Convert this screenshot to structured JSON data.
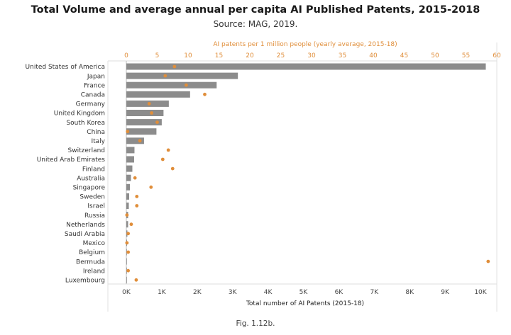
{
  "header": {
    "title": "Total Volume and average annual per capita AI Published Patents, 2015-2018",
    "subtitle": "Source: MAG, 2019."
  },
  "caption": "Fig. 1.12b.",
  "chart_data": {
    "type": "bar",
    "orientation": "horizontal",
    "categories": [
      "United States of America",
      "Japan",
      "France",
      "Canada",
      "Germany",
      "United Kingdom",
      "South Korea",
      "China",
      "Italy",
      "Switzerland",
      "United Arab Emirates",
      "Finland",
      "Australia",
      "Singapore",
      "Sweden",
      "Israel",
      "Russia",
      "Netherlands",
      "Saudi Arabia",
      "Mexico",
      "Belgium",
      "Bermuda",
      "Ireland",
      "Luxembourg"
    ],
    "series": [
      {
        "type": "bar",
        "axis": "bottom",
        "color": "#8c8c8c",
        "values": [
          10150,
          3150,
          2550,
          1800,
          1200,
          1050,
          1000,
          850,
          500,
          230,
          220,
          170,
          130,
          100,
          80,
          70,
          50,
          50,
          30,
          20,
          15,
          5,
          10,
          10
        ]
      },
      {
        "type": "scatter",
        "axis": "top",
        "color": "#e08e3a",
        "values": [
          7.8,
          6.3,
          9.7,
          12.7,
          3.7,
          4.1,
          5.0,
          0.2,
          2.2,
          6.8,
          5.9,
          7.5,
          1.4,
          4.0,
          1.7,
          1.7,
          0.1,
          0.8,
          0.3,
          0.1,
          0.3,
          58.6,
          0.3,
          1.6
        ]
      }
    ],
    "xlabel_bottom": "Total number of AI Patents (2015-18)",
    "xlabel_top": "AI patents per 1 million people (yearly average, 2015-18)",
    "xlim_bottom": [
      0,
      10500
    ],
    "xticks_bottom": [
      0,
      1000,
      2000,
      3000,
      4000,
      5000,
      6000,
      7000,
      8000,
      9000,
      10000
    ],
    "xticklabels_bottom": [
      "0K",
      "1K",
      "2K",
      "3K",
      "4K",
      "5K",
      "6K",
      "7K",
      "8K",
      "9K",
      "10K"
    ],
    "xlim_top": [
      0,
      60
    ],
    "xticks_top": [
      0,
      5,
      10,
      15,
      20,
      25,
      30,
      35,
      40,
      45,
      50,
      55,
      60
    ],
    "xticklabels_top": [
      "0",
      "5",
      "10",
      "15",
      "20",
      "25",
      "30",
      "35",
      "40",
      "45",
      "50",
      "55",
      "60"
    ],
    "grid": true,
    "legend": "none"
  }
}
